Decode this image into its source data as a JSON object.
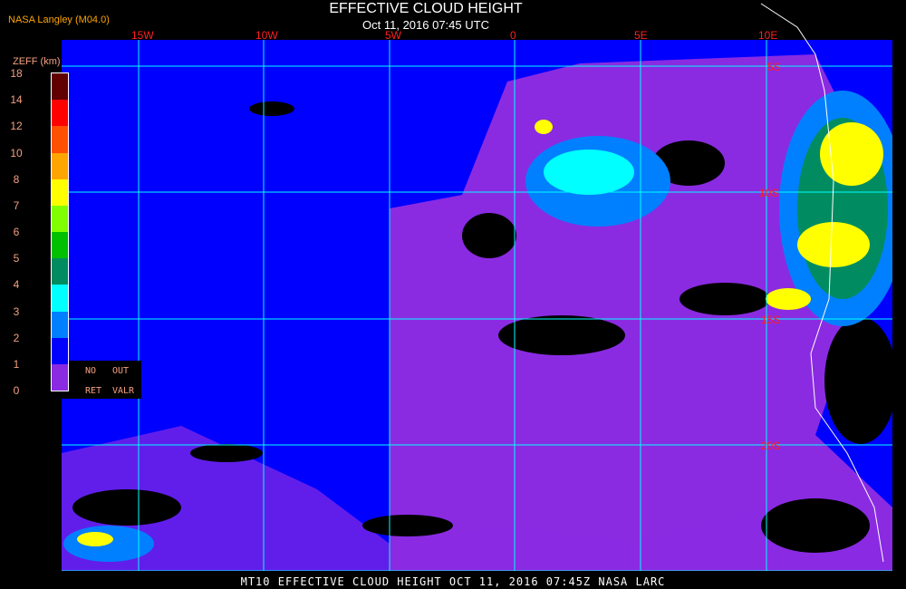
{
  "header": {
    "title": "EFFECTIVE CLOUD HEIGHT",
    "subtitle": "Oct 11, 2016 07:45 UTC",
    "source": "NASA Langley (M04.0)"
  },
  "legend": {
    "unit": "ZEFF (km)",
    "ticks": [
      "18",
      "14",
      "12",
      "10",
      "8",
      "7",
      "6",
      "5",
      "4",
      "3",
      "2",
      "1",
      "0"
    ],
    "colors": [
      "#600000",
      "#ff0000",
      "#ff5000",
      "#ffa500",
      "#ffff00",
      "#80ff00",
      "#00c000",
      "#008c60",
      "#00ffff",
      "#0080ff",
      "#0000ff",
      "#8a2be2"
    ],
    "no_ret": [
      "NO",
      "RET"
    ],
    "out_valr": [
      "OUT",
      "VALR"
    ]
  },
  "map": {
    "lon_labels": [
      "15W",
      "10W",
      "5W",
      "0",
      "5E",
      "10E"
    ],
    "lat_labels": [
      "5S",
      "10S",
      "15S",
      "20S"
    ],
    "colors": {
      "grid": "#00ffff",
      "low_cloud": "#0000ff",
      "clear": "#8a2be2",
      "no_retrieval": "#000000",
      "coast": "#ffffff"
    }
  },
  "footer": "MT10  EFFECTIVE CLOUD HEIGHT   OCT 11, 2016 07:45Z   NASA LARC"
}
